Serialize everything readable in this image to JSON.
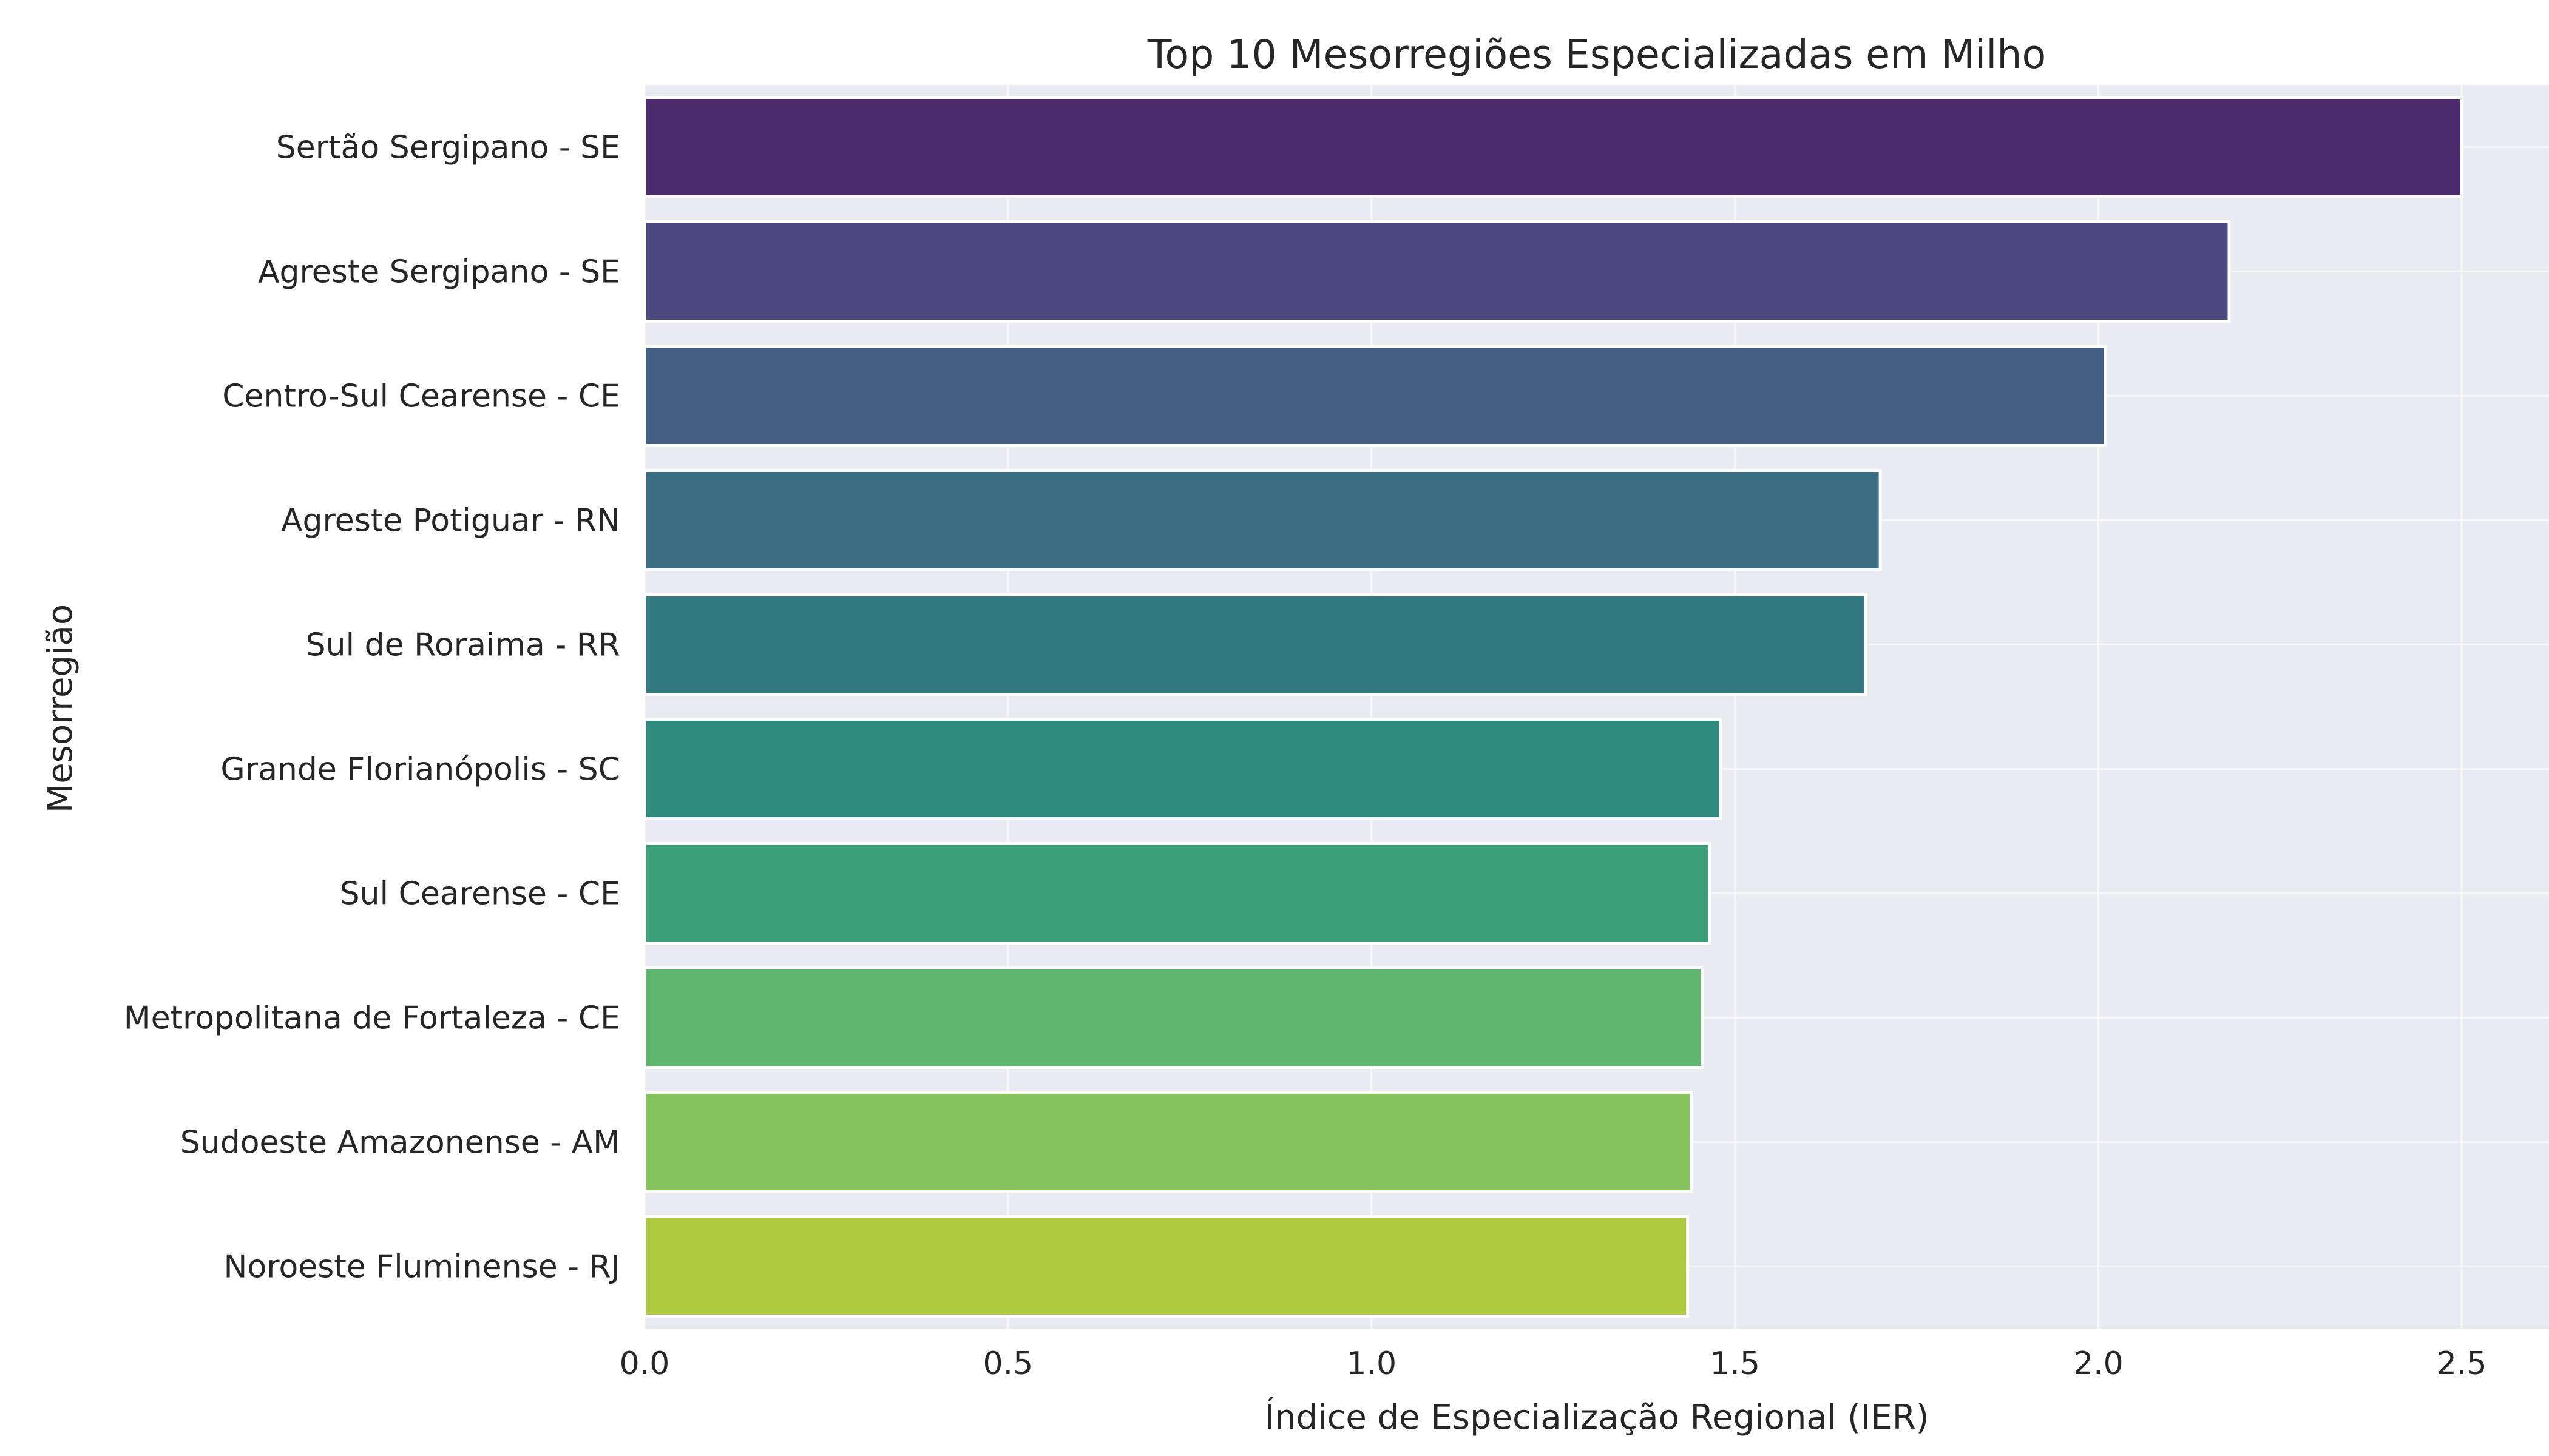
{
  "chart_data": {
    "type": "bar",
    "orientation": "horizontal",
    "title": "Top 10 Mesorregiões Especializadas em Milho",
    "xlabel": "Índice de Especialização Regional (IER)",
    "ylabel": "Mesorregião",
    "xlim": [
      0,
      2.62
    ],
    "xticks": [
      "0.0",
      "0.5",
      "1.0",
      "1.5",
      "2.0",
      "2.5"
    ],
    "xtick_values": [
      0,
      0.5,
      1.0,
      1.5,
      2.0,
      2.5
    ],
    "grid": true,
    "categories": [
      "Sertão Sergipano - SE",
      "Agreste Sergipano - SE",
      "Centro-Sul Cearense - CE",
      "Agreste Potiguar - RN",
      "Sul de Roraima - RR",
      "Grande Florianópolis - SC",
      "Sul Cearense - CE",
      "Metropolitana de Fortaleza - CE",
      "Sudoeste Amazonense - AM",
      "Noroeste Fluminense - RJ"
    ],
    "values": [
      2.5,
      2.18,
      2.01,
      1.7,
      1.68,
      1.48,
      1.465,
      1.455,
      1.44,
      1.435
    ],
    "colors": [
      "#4a2a6a",
      "#4a487e",
      "#435d83",
      "#3a6d82",
      "#327a80",
      "#2f8b7e",
      "#3b9f78",
      "#5db56e",
      "#88c45d",
      "#afc93e"
    ],
    "background": "#eaeaf2"
  }
}
